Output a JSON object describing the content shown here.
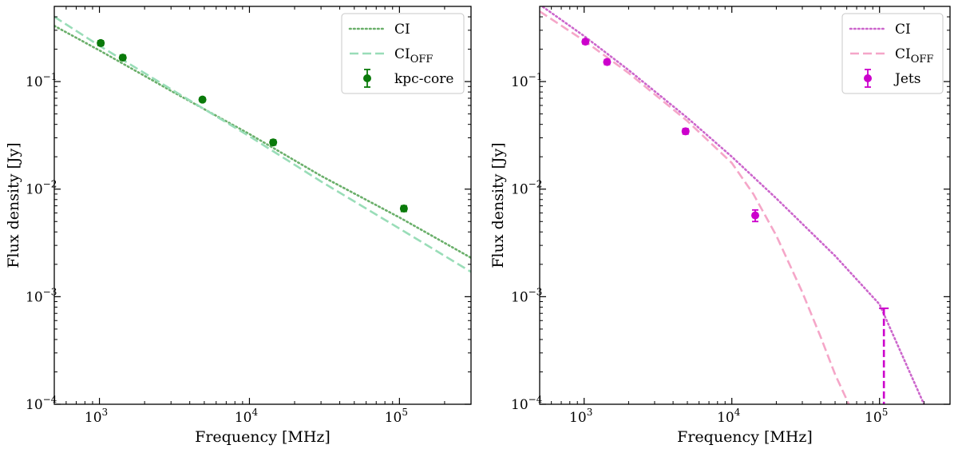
{
  "chart_data": [
    {
      "type": "line",
      "panel": "left",
      "xlabel": "Frequency [MHz]",
      "ylabel": "Flux density [Jy]",
      "xscale": "log",
      "yscale": "log",
      "xlim": [
        500,
        300000
      ],
      "ylim": [
        0.0001,
        0.5
      ],
      "x_ticks": [
        {
          "value": 1000,
          "base": "10",
          "exp": "3"
        },
        {
          "value": 10000,
          "base": "10",
          "exp": "4"
        },
        {
          "value": 100000,
          "base": "10",
          "exp": "5"
        }
      ],
      "y_ticks": [
        {
          "value": 0.1,
          "base": "10",
          "exp": "−1"
        },
        {
          "value": 0.01,
          "base": "10",
          "exp": "−2"
        },
        {
          "value": 0.001,
          "base": "10",
          "exp": "−3"
        },
        {
          "value": 0.0001,
          "base": "10",
          "exp": "−4"
        }
      ],
      "legend": {
        "position": "top-right",
        "entries": [
          {
            "series": "CI",
            "label": "CI",
            "sub": ""
          },
          {
            "series": "CI_OFF",
            "label": "CI",
            "sub": "OFF"
          },
          {
            "series": "data",
            "label": "kpc-core",
            "sub": ""
          }
        ]
      },
      "series": [
        {
          "name": "CI",
          "style": "dotted",
          "color": "#6aaf6a",
          "x": [
            500,
            1000,
            3000,
            10000,
            30000,
            100000,
            300000
          ],
          "y": [
            0.33,
            0.195,
            0.082,
            0.0325,
            0.0133,
            0.00545,
            0.0023
          ]
        },
        {
          "name": "CI_OFF",
          "style": "dashed",
          "color": "#99ddb8",
          "x": [
            500,
            1000,
            3000,
            10000,
            30000,
            100000,
            300000
          ],
          "y": [
            0.4,
            0.215,
            0.085,
            0.031,
            0.0118,
            0.0043,
            0.0017
          ]
        },
        {
          "name": "data",
          "style": "points",
          "color": "#0a7a0a",
          "x": [
            1020,
            1430,
            4860,
            14400,
            107000
          ],
          "y": [
            0.228,
            0.167,
            0.068,
            0.0272,
            0.0066
          ],
          "yerr": [
            0.012,
            0.009,
            0.003,
            0.0015,
            0.0004
          ]
        }
      ]
    },
    {
      "type": "line",
      "panel": "right",
      "xlabel": "Frequency [MHz]",
      "ylabel": "Flux density [Jy]",
      "xscale": "log",
      "yscale": "log",
      "xlim": [
        500,
        300000
      ],
      "ylim": [
        0.0001,
        0.5
      ],
      "x_ticks": [
        {
          "value": 1000,
          "base": "10",
          "exp": "3"
        },
        {
          "value": 10000,
          "base": "10",
          "exp": "4"
        },
        {
          "value": 100000,
          "base": "10",
          "exp": "5"
        }
      ],
      "y_ticks": [
        {
          "value": 0.1,
          "base": "10",
          "exp": "−1"
        },
        {
          "value": 0.01,
          "base": "10",
          "exp": "−2"
        },
        {
          "value": 0.001,
          "base": "10",
          "exp": "−3"
        },
        {
          "value": 0.0001,
          "base": "10",
          "exp": "−4"
        }
      ],
      "legend": {
        "position": "top-right",
        "entries": [
          {
            "series": "CI",
            "label": "CI",
            "sub": ""
          },
          {
            "series": "CI_OFF",
            "label": "CI",
            "sub": "OFF"
          },
          {
            "series": "data",
            "label": "Jets",
            "sub": ""
          }
        ]
      },
      "series": [
        {
          "name": "CI",
          "style": "dotted",
          "color": "#cc66cc",
          "x": [
            500,
            1000,
            2000,
            5000,
            10000,
            20000,
            50000,
            100000,
            200000
          ],
          "y": [
            0.52,
            0.265,
            0.128,
            0.046,
            0.02,
            0.0082,
            0.0024,
            0.00085,
            0.0001
          ]
        },
        {
          "name": "CI_OFF",
          "style": "dashed",
          "color": "#f5a6c8",
          "x": [
            500,
            1000,
            2000,
            5000,
            10000,
            14000,
            20000,
            30000,
            40000,
            50000,
            62000
          ],
          "y": [
            0.45,
            0.24,
            0.12,
            0.043,
            0.0175,
            0.009,
            0.0037,
            0.0011,
            0.00042,
            0.00019,
            0.0001
          ]
        },
        {
          "name": "data",
          "style": "points",
          "color": "#cc00cc",
          "x": [
            1020,
            1430,
            4860,
            14400
          ],
          "y": [
            0.235,
            0.152,
            0.0345,
            0.0057
          ],
          "yerr": [
            0.012,
            0.008,
            0.002,
            0.0007
          ]
        },
        {
          "name": "upper_limit",
          "style": "dashed-errorbar",
          "color": "#cc00cc",
          "x": [
            107000
          ],
          "y_top": [
            0.00078
          ],
          "y_bottom": [
            0.0001
          ]
        }
      ]
    }
  ]
}
